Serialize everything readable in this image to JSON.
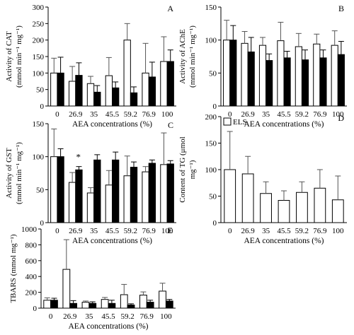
{
  "chart_data": [
    {
      "panel": "A",
      "type": "bar",
      "ylabel_lines": [
        "Activity of CAT",
        "(mmol min⁻¹ mg⁻¹)"
      ],
      "xlabel": "AEA concentrations (%)",
      "ylim": [
        0,
        300
      ],
      "yticks": [
        0,
        50,
        100,
        150,
        200,
        250,
        300
      ],
      "categories": [
        "0",
        "26.9",
        "35",
        "45.5",
        "59.2",
        "76.9",
        "100"
      ],
      "series": [
        {
          "fill": "#ffffff",
          "values": [
            100,
            75,
            68,
            92,
            200,
            100,
            135
          ],
          "errors": [
            45,
            45,
            22,
            55,
            50,
            90,
            75
          ]
        },
        {
          "fill": "#000000",
          "values": [
            100,
            93,
            42,
            55,
            40,
            88,
            135
          ],
          "errors": [
            48,
            38,
            20,
            18,
            18,
            45,
            35
          ]
        }
      ],
      "annotations": []
    },
    {
      "panel": "B",
      "type": "bar",
      "ylabel_lines": [
        "Activity of AChE",
        "(mmol min⁻¹ mg⁻¹)"
      ],
      "xlabel": "AEA concentrations (%)",
      "ylim": [
        0,
        150
      ],
      "yticks": [
        0,
        50,
        100,
        150
      ],
      "categories": [
        "0",
        "26.9",
        "35",
        "45.5",
        "59.2",
        "76.9",
        "100"
      ],
      "series": [
        {
          "fill": "#ffffff",
          "values": [
            100,
            95,
            92,
            99,
            90,
            94,
            92
          ],
          "errors": [
            30,
            18,
            12,
            28,
            20,
            15,
            22
          ]
        },
        {
          "fill": "#000000",
          "values": [
            100,
            82,
            69,
            73,
            70,
            73,
            78
          ],
          "errors": [
            22,
            22,
            10,
            10,
            15,
            12,
            20
          ]
        }
      ],
      "annotations": []
    },
    {
      "panel": "C",
      "type": "bar",
      "ylabel_lines": [
        "Activity of GST",
        "(mmol min⁻¹ mg⁻¹)"
      ],
      "xlabel": "AEA concentrations (%)",
      "ylim": [
        0,
        150
      ],
      "yticks": [
        0,
        50,
        100,
        150
      ],
      "categories": [
        "0",
        "26.9",
        "35",
        "45.5",
        "59.2",
        "76.9",
        "100"
      ],
      "series": [
        {
          "fill": "#ffffff",
          "values": [
            100,
            61,
            45,
            57,
            71,
            77,
            88
          ],
          "errors": [
            42,
            15,
            8,
            22,
            30,
            8,
            48
          ]
        },
        {
          "fill": "#000000",
          "values": [
            100,
            80,
            95,
            95,
            84,
            90,
            89
          ],
          "errors": [
            12,
            5,
            8,
            12,
            8,
            5,
            5
          ]
        }
      ],
      "annotations": [
        {
          "category_index": 1,
          "text": "*"
        }
      ]
    },
    {
      "panel": "D",
      "type": "bar",
      "ylabel_lines": [
        "Content of TG (μmol",
        "mg⁻¹)"
      ],
      "xlabel": "AEA concentrations (%)",
      "ylim": [
        0,
        200
      ],
      "yticks": [
        0,
        50,
        100,
        150,
        200
      ],
      "categories": [
        "0",
        "26.9",
        "35",
        "45.5",
        "59.2",
        "76.9",
        "100"
      ],
      "legend": {
        "label": "ELS",
        "position": "top-left"
      },
      "series": [
        {
          "name": "ELS",
          "fill": "#ffffff",
          "values": [
            100,
            92,
            55,
            42,
            57,
            65,
            43
          ],
          "errors": [
            72,
            33,
            22,
            18,
            20,
            35,
            45
          ]
        }
      ],
      "annotations": []
    },
    {
      "panel": "E",
      "type": "bar",
      "ylabel_lines": [
        "TBARS (mmol mg⁻¹)"
      ],
      "xlabel": "AEA concentrations (%)",
      "ylim": [
        0,
        1000
      ],
      "yticks": [
        0,
        200,
        400,
        600,
        800,
        1000
      ],
      "categories": [
        "0",
        "26.9",
        "35",
        "45.5",
        "59.2",
        "76.9",
        "100"
      ],
      "series": [
        {
          "fill": "#ffffff",
          "values": [
            100,
            490,
            75,
            110,
            170,
            165,
            215
          ],
          "errors": [
            30,
            375,
            15,
            25,
            130,
            40,
            100
          ]
        },
        {
          "fill": "#000000",
          "values": [
            100,
            60,
            60,
            60,
            40,
            75,
            90
          ],
          "errors": [
            25,
            35,
            20,
            40,
            15,
            25,
            20
          ]
        }
      ],
      "annotations": []
    }
  ]
}
